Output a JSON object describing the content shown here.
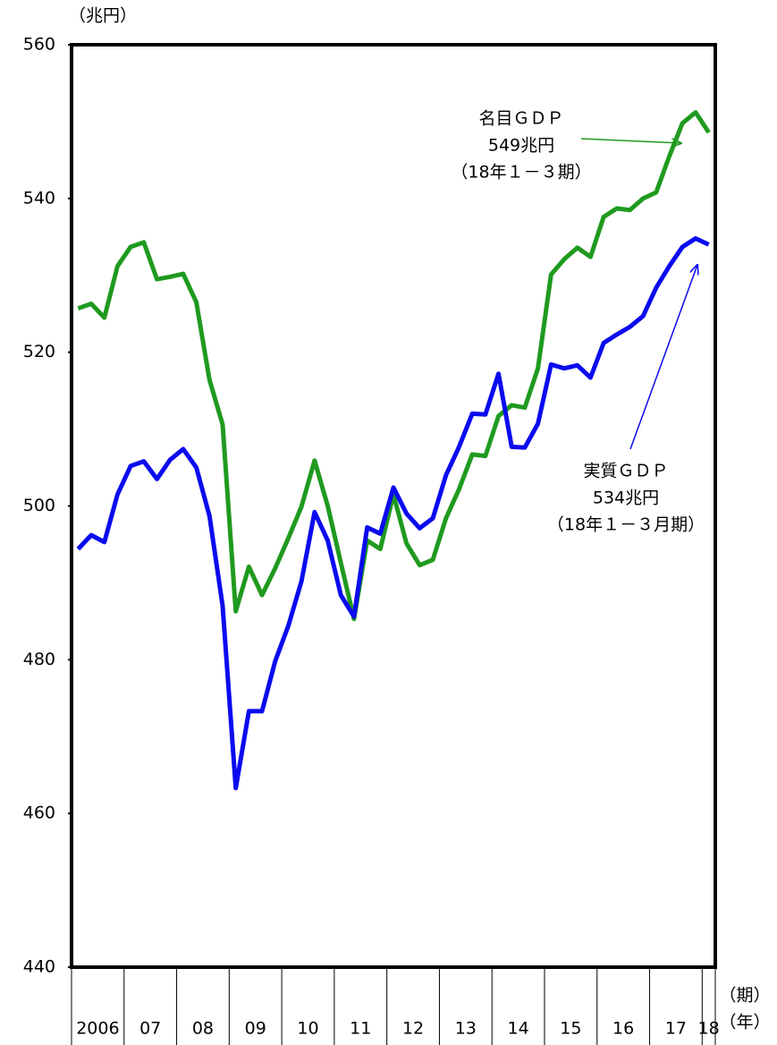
{
  "chart_data": {
    "type": "line",
    "y_axis_label": "（兆円）",
    "x_axis_labels": [
      "（期）",
      "（年）"
    ],
    "categories": [
      null,
      null,
      null,
      null,
      null,
      null,
      null,
      null,
      null,
      null,
      null,
      null,
      null,
      null,
      null,
      null,
      null,
      null,
      null,
      null,
      null,
      null,
      null,
      null,
      null,
      null,
      null,
      null,
      null,
      null,
      null,
      null,
      null,
      null,
      null,
      null,
      null,
      null,
      null,
      null,
      null,
      null,
      null,
      null,
      null,
      null,
      null,
      null,
      null
    ],
    "year_labels": [
      "2006",
      "07",
      "08",
      "09",
      "10",
      "11",
      "12",
      "13",
      "14",
      "15",
      "16",
      "17",
      "18"
    ],
    "series": [
      {
        "name": "名目ＧＤＰ",
        "color": "#1f9a1f",
        "values": [
          525.7,
          526.3,
          524.5,
          531.2,
          533.7,
          534.3,
          529.5,
          529.8,
          530.2,
          526.5,
          516.4,
          510.6,
          486.3,
          492.1,
          488.4,
          491.9,
          495.8,
          499.9,
          505.9,
          500.0,
          492.6,
          485.3,
          495.5,
          494.4,
          501.5,
          495.1,
          492.3,
          493.0,
          498.4,
          502.2,
          506.7,
          506.5,
          511.7,
          513.1,
          512.8,
          517.9,
          530.1,
          532.1,
          533.6,
          532.4,
          537.6,
          538.7,
          538.5,
          540.0,
          540.8,
          545.5,
          549.8,
          551.2,
          548.6
        ]
      },
      {
        "name": "実質ＧＤＰ",
        "color": "#0a0af0",
        "values": [
          494.4,
          496.2,
          495.3,
          501.5,
          505.2,
          505.8,
          503.5,
          506.0,
          507.4,
          505.0,
          498.7,
          487.0,
          463.3,
          473.3,
          473.3,
          479.8,
          484.4,
          490.2,
          499.2,
          495.5,
          488.4,
          485.6,
          497.2,
          496.4,
          502.4,
          499.0,
          497.1,
          498.4,
          504.0,
          507.7,
          512.0,
          511.9,
          517.2,
          507.7,
          507.6,
          510.7,
          518.4,
          517.9,
          518.3,
          516.7,
          521.2,
          522.3,
          523.3,
          524.7,
          528.4,
          531.2,
          533.7,
          534.8,
          534.0
        ]
      }
    ],
    "annotations": [
      {
        "lines": [
          "名目ＧＤＰ",
          "549兆円",
          "（18年１－３期）"
        ],
        "color": "#1f9a1f"
      },
      {
        "lines": [
          "実質ＧＤＰ",
          "534兆円",
          "（18年１－３月期）"
        ],
        "color": "#0a0af0"
      }
    ],
    "ylim": [
      440,
      560
    ],
    "yticks": [
      440,
      460,
      480,
      500,
      520,
      540,
      560
    ],
    "grid": false
  }
}
